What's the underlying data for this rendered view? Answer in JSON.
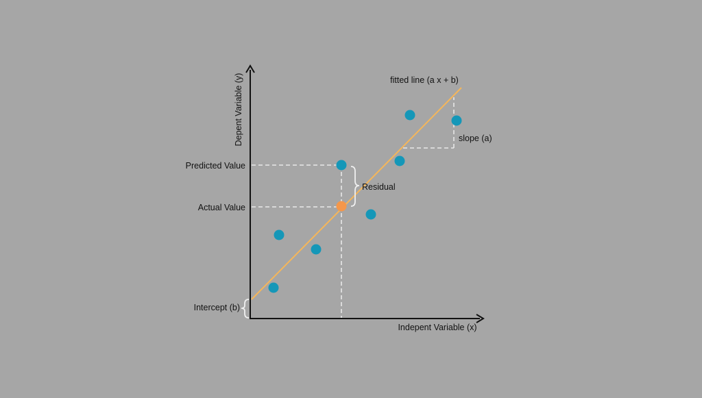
{
  "colors": {
    "background": "#a6a6a6",
    "axis": "#111111",
    "fitted_line": "#f5b65a",
    "data_point": "#1597b8",
    "highlight_point": "#f5974a",
    "guide_dash": "#e8e8e8"
  },
  "labels": {
    "y_axis": "Depent Variable (y)",
    "x_axis": "Indepent Variable (x)",
    "fitted_line": "fitted line (a x + b)",
    "slope": "slope  (a)",
    "predicted_value": "Predicted Value",
    "actual_value": "Actual Value",
    "residual": "Residual",
    "intercept": "Intercept (b)"
  },
  "icons": {
    "y_axis_arrow": "arrow-up-icon",
    "x_axis_arrow": "arrow-right-icon",
    "residual_brace": "curly-brace-icon",
    "intercept_brace": "curly-brace-icon"
  }
}
